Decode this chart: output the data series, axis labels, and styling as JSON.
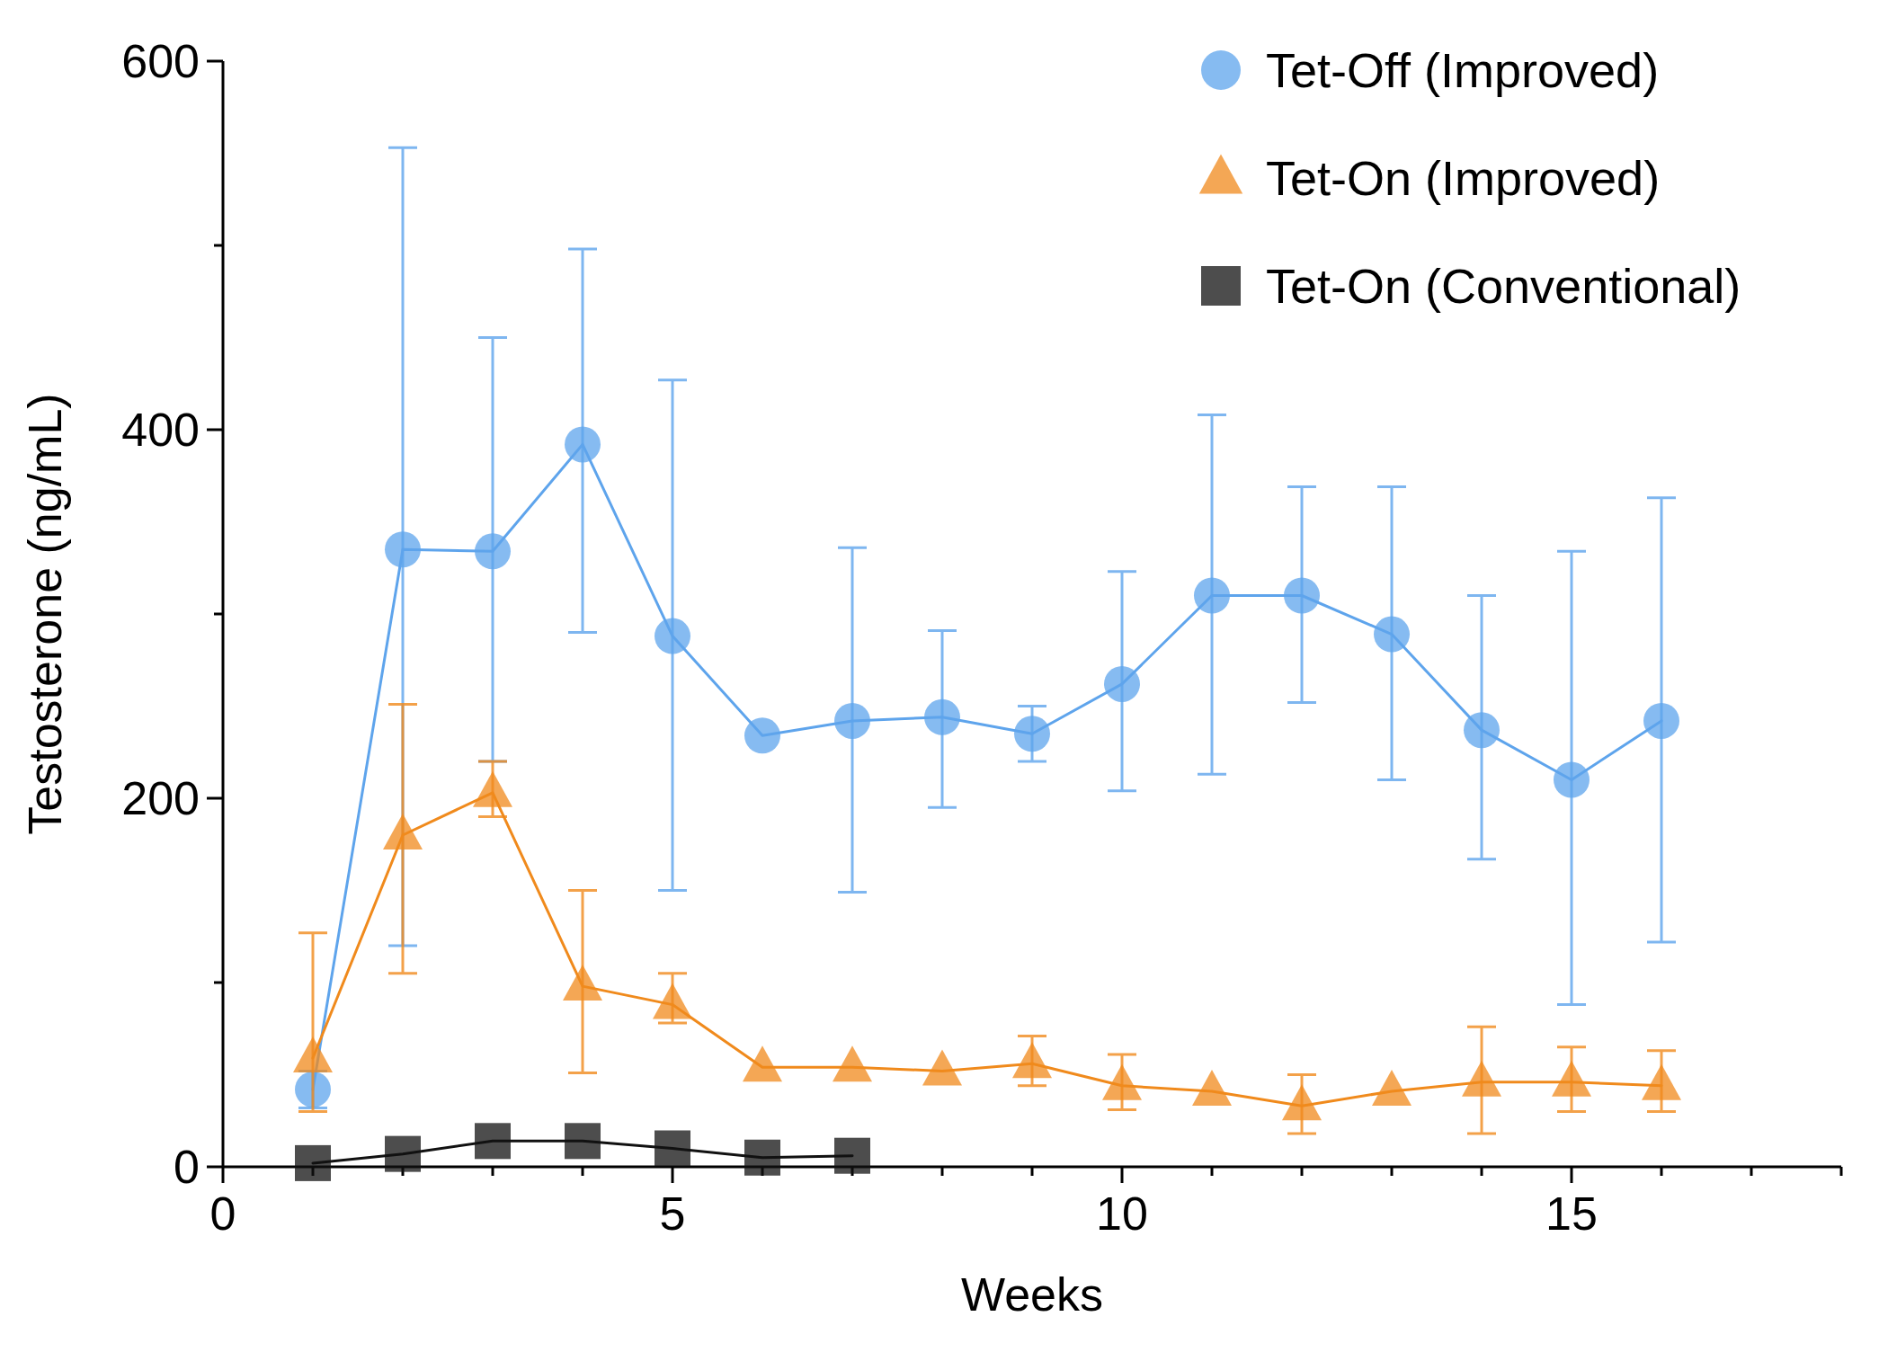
{
  "chart_data": {
    "type": "line",
    "xlabel": "Weeks",
    "ylabel": "Testosterone (ng/mL)",
    "xlim": [
      0,
      18
    ],
    "ylim": [
      0,
      600
    ],
    "xticks": [
      0,
      {
        "value": 1,
        "label": null
      },
      {
        "value": 2,
        "label": null
      },
      {
        "value": 3,
        "label": null
      },
      {
        "value": 4,
        "label": null
      },
      5,
      {
        "value": 6,
        "label": null
      },
      {
        "value": 7,
        "label": null
      },
      {
        "value": 8,
        "label": null
      },
      {
        "value": 9,
        "label": null
      },
      10,
      {
        "value": 11,
        "label": null
      },
      {
        "value": 12,
        "label": null
      },
      {
        "value": 13,
        "label": null
      },
      {
        "value": 14,
        "label": null
      },
      15,
      {
        "value": 16,
        "label": null
      },
      {
        "value": 17,
        "label": null
      },
      {
        "value": 18,
        "label": null
      }
    ],
    "yticks": [
      0,
      {
        "value": 100,
        "label": null
      },
      200,
      {
        "value": 300,
        "label": null
      },
      400,
      {
        "value": 500,
        "label": null
      },
      600
    ],
    "grid": false,
    "legend": "top right",
    "line_style": "solid",
    "x": [
      1,
      2,
      3,
      4,
      5,
      6,
      7,
      8,
      9,
      10,
      11,
      12,
      13,
      14,
      15,
      16
    ],
    "series": [
      {
        "name": "Tet-Off (Improved)",
        "color": "#5ea4ec",
        "marker": "circle",
        "values": [
          42,
          335,
          334,
          392,
          288,
          234,
          242,
          244,
          235,
          262,
          310,
          310,
          289,
          237,
          210,
          242
        ],
        "errors": [
          [
            32,
            52
          ],
          [
            120,
            553
          ],
          [
            220,
            450
          ],
          [
            290,
            498
          ],
          [
            150,
            427
          ],
          null,
          [
            149,
            336
          ],
          [
            195,
            291
          ],
          [
            220,
            250
          ],
          [
            204,
            323
          ],
          [
            213,
            408
          ],
          [
            252,
            369
          ],
          [
            210,
            369
          ],
          [
            167,
            310
          ],
          [
            88,
            334
          ],
          [
            122,
            363
          ]
        ]
      },
      {
        "name": "Tet-On (Improved)",
        "color": "#f08a1c",
        "marker": "triangle",
        "values": [
          59,
          180,
          203,
          98,
          88,
          54,
          54,
          52,
          56,
          44,
          41,
          33,
          41,
          46,
          46,
          44
        ],
        "errors": [
          [
            30,
            127
          ],
          [
            105,
            251
          ],
          [
            190,
            220
          ],
          [
            51,
            150
          ],
          [
            78,
            105
          ],
          null,
          null,
          null,
          [
            44,
            71
          ],
          [
            31,
            61
          ],
          null,
          [
            18,
            50
          ],
          null,
          [
            18,
            76
          ],
          [
            30,
            65
          ],
          [
            30,
            63
          ]
        ]
      },
      {
        "name": "Tet-On (Conventional)",
        "color": "#111111",
        "marker": "square",
        "x": [
          1,
          2,
          3,
          4,
          5,
          6,
          7
        ],
        "values": [
          2,
          7,
          14,
          14,
          10,
          5,
          6
        ]
      }
    ]
  }
}
